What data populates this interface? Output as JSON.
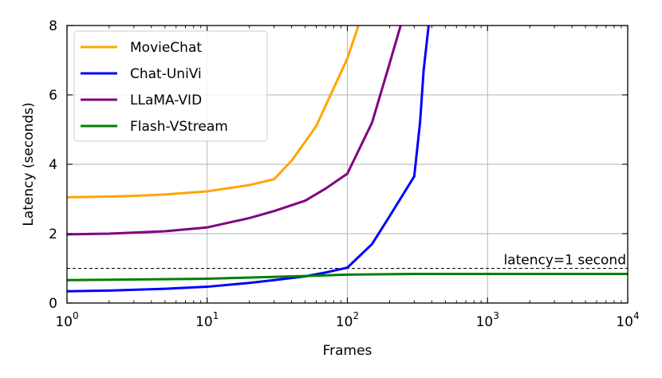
{
  "chart_data": {
    "type": "line",
    "title": "",
    "xlabel": "Frames",
    "ylabel": "Latency (seconds)",
    "xscale": "log",
    "xlim": [
      1,
      10000
    ],
    "ylim": [
      0,
      8
    ],
    "grid": true,
    "legend_position": "top-left",
    "x_ticks": [
      {
        "value": 1,
        "base": "10",
        "exp": "0"
      },
      {
        "value": 10,
        "base": "10",
        "exp": "1"
      },
      {
        "value": 100,
        "base": "10",
        "exp": "2"
      },
      {
        "value": 1000,
        "base": "10",
        "exp": "3"
      },
      {
        "value": 10000,
        "base": "10",
        "exp": "4"
      }
    ],
    "y_ticks": [
      {
        "value": 0,
        "label": "0"
      },
      {
        "value": 2,
        "label": "2"
      },
      {
        "value": 4,
        "label": "4"
      },
      {
        "value": 6,
        "label": "6"
      },
      {
        "value": 8,
        "label": "8"
      }
    ],
    "reference_line": {
      "y": 1,
      "label": "latency=1 second"
    },
    "series": [
      {
        "name": "MovieChat",
        "color": "#FFA500",
        "x": [
          1,
          2,
          3,
          5,
          10,
          20,
          30,
          40,
          60,
          80,
          100,
          120
        ],
        "y": [
          3.05,
          3.07,
          3.09,
          3.13,
          3.22,
          3.4,
          3.57,
          4.1,
          5.1,
          6.2,
          7.05,
          8.0
        ]
      },
      {
        "name": "Chat-UniVi",
        "color": "#0000FF",
        "x": [
          1,
          2,
          5,
          10,
          20,
          30,
          50,
          70,
          100,
          150,
          200,
          300,
          330,
          350,
          380
        ],
        "y": [
          0.34,
          0.36,
          0.41,
          0.47,
          0.58,
          0.66,
          0.77,
          0.88,
          1.02,
          1.7,
          2.5,
          3.65,
          5.2,
          6.7,
          8.0
        ]
      },
      {
        "name": "LLaMA-VID",
        "color": "#800080",
        "x": [
          1,
          2,
          5,
          10,
          20,
          30,
          50,
          70,
          100,
          150,
          200,
          240
        ],
        "y": [
          1.98,
          2.0,
          2.07,
          2.18,
          2.45,
          2.65,
          2.95,
          3.3,
          3.73,
          5.2,
          6.9,
          8.0
        ]
      },
      {
        "name": "Flash-VStream",
        "color": "#008000",
        "x": [
          1,
          10,
          50,
          100,
          300,
          1000,
          3000,
          10000
        ],
        "y": [
          0.66,
          0.7,
          0.78,
          0.82,
          0.84,
          0.84,
          0.84,
          0.84
        ]
      }
    ]
  }
}
